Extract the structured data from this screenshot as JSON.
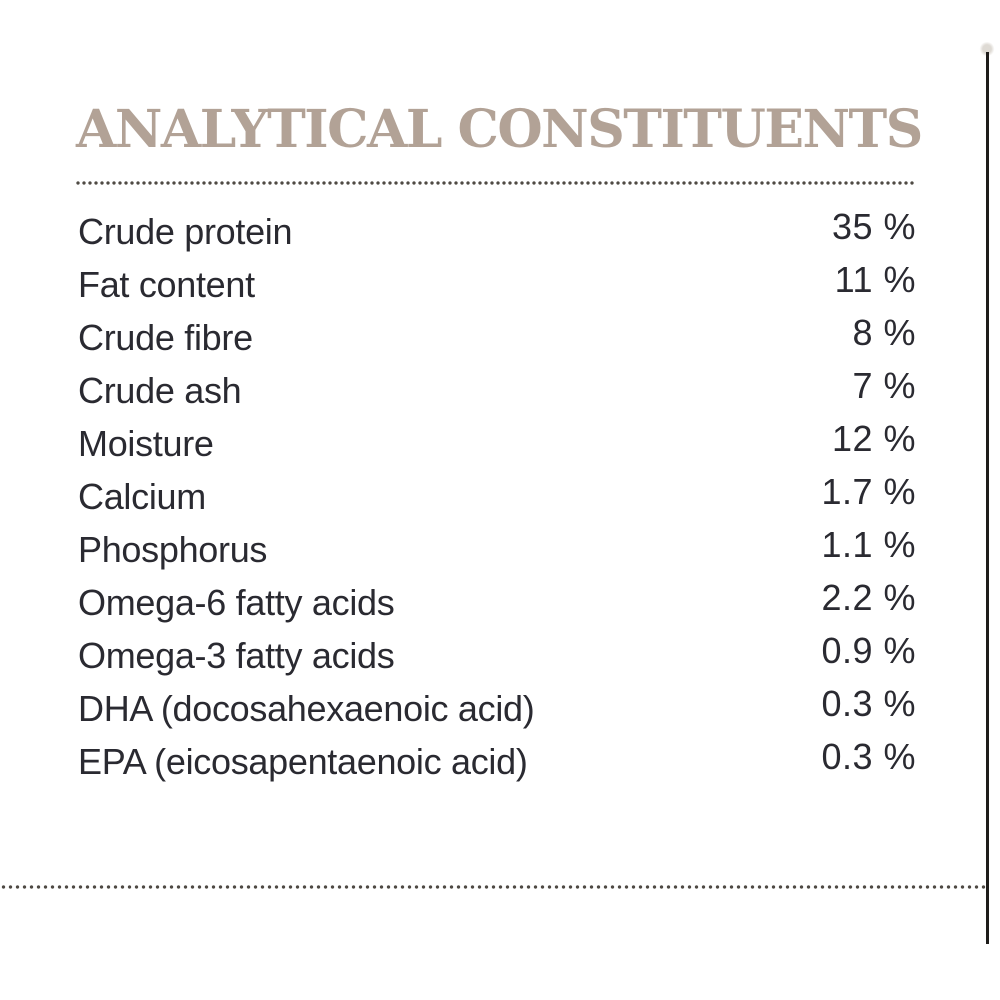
{
  "title": "ANALYTICAL CONSTITUENTS",
  "rows": [
    {
      "label": "Crude protein",
      "value": "35 %"
    },
    {
      "label": "Fat content",
      "value": "11 %"
    },
    {
      "label": "Crude fibre",
      "value": "8 %"
    },
    {
      "label": "Crude ash",
      "value": "7 %"
    },
    {
      "label": "Moisture",
      "value": "12 %"
    },
    {
      "label": "Calcium",
      "value": "1.7 %"
    },
    {
      "label": "Phosphorus",
      "value": "1.1 %"
    },
    {
      "label": "Omega-6 fatty acids",
      "value": "2.2 %"
    },
    {
      "label": "Omega-3 fatty acids",
      "value": "0.9 %"
    },
    {
      "label": "DHA (docosahexaenoic acid)",
      "value": "0.3 %"
    },
    {
      "label": "EPA (eicosapentaenoic acid)",
      "value": "0.3 %"
    }
  ],
  "colors": {
    "title": "#b2a296",
    "text": "#2a2a31",
    "dots": "#4f4a44",
    "rule": "#1e1c1a",
    "background": "#ffffff"
  }
}
